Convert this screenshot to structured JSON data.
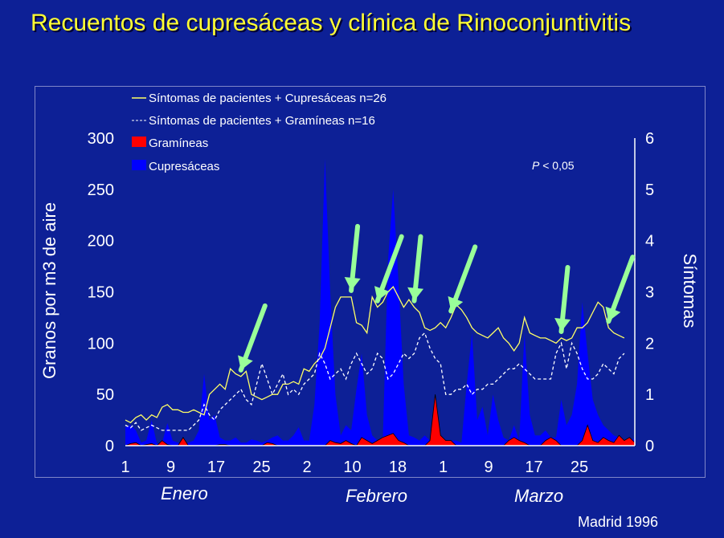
{
  "title": "Recuentos de cupresáceas y clínica de Rinoconjuntivitis",
  "footer": "Madrid 1996",
  "chart_data": {
    "type": "area",
    "ylabel": "Granos por m3 de aire",
    "y2label": "Síntomas",
    "ylim": [
      0,
      300
    ],
    "y2lim": [
      0,
      6
    ],
    "yticks": [
      "0",
      "50",
      "100",
      "150",
      "200",
      "250",
      "300"
    ],
    "y2ticks": [
      "0",
      "1",
      "2",
      "3",
      "4",
      "5",
      "6"
    ],
    "xticks": [
      "1",
      "9",
      "17",
      "25",
      "2",
      "10",
      "18",
      "1",
      "9",
      "17",
      "25"
    ],
    "months": [
      "Enero",
      "Febrero",
      "Marzo"
    ],
    "annotation": "P < 0,05",
    "legend": {
      "placement": "top-left",
      "entries": [
        {
          "label": "Síntomas de pacientes + Cupresáceas n=26",
          "color": "#ffff66",
          "style": "line"
        },
        {
          "label": "Síntomas de pacientes + Gramíneas n=16",
          "color": "#ffffff",
          "style": "dashed"
        },
        {
          "label": "Gramíneas",
          "color": "#ff0000",
          "style": "area"
        },
        {
          "label": "Cupresáceas",
          "color": "#0000ff",
          "style": "area"
        }
      ]
    },
    "series": [
      {
        "name": "Cupresáceas",
        "axis": "left",
        "kind": "area",
        "color": "#0000ff",
        "values": [
          18,
          20,
          15,
          3,
          5,
          25,
          2,
          3,
          22,
          5,
          3,
          1,
          3,
          5,
          15,
          70,
          25,
          30,
          8,
          5,
          5,
          8,
          3,
          3,
          6,
          5,
          3,
          5,
          8,
          10,
          5,
          5,
          10,
          18,
          5,
          5,
          40,
          120,
          280,
          150,
          50,
          10,
          20,
          15,
          55,
          90,
          30,
          10,
          5,
          3,
          180,
          250,
          160,
          60,
          10,
          8,
          5,
          10,
          5,
          5,
          3,
          3,
          5,
          5,
          3,
          60,
          110,
          25,
          38,
          10,
          50,
          25,
          8,
          5,
          20,
          5,
          110,
          30,
          10,
          10,
          15,
          8,
          8,
          45,
          20,
          30,
          60,
          140,
          90,
          45,
          30,
          20,
          15,
          10,
          8,
          5,
          3,
          8
        ]
      },
      {
        "name": "Gramíneas",
        "axis": "left",
        "kind": "area",
        "color": "#ff0000",
        "values": [
          0,
          2,
          3,
          0,
          1,
          2,
          0,
          5,
          1,
          0,
          0,
          8,
          0,
          0,
          0,
          0,
          0,
          0,
          1,
          1,
          0,
          0,
          0,
          0,
          0,
          0,
          0,
          3,
          2,
          0,
          0,
          0,
          0,
          0,
          0,
          0,
          0,
          0,
          0,
          5,
          3,
          2,
          5,
          2,
          0,
          8,
          5,
          2,
          5,
          8,
          10,
          12,
          5,
          3,
          0,
          0,
          0,
          0,
          5,
          50,
          10,
          5,
          5,
          0,
          0,
          0,
          0,
          0,
          0,
          0,
          0,
          0,
          0,
          5,
          8,
          5,
          3,
          0,
          0,
          0,
          5,
          8,
          5,
          0,
          0,
          0,
          0,
          5,
          20,
          5,
          3,
          8,
          5,
          3,
          10,
          5,
          8,
          3
        ]
      },
      {
        "name": "Síntomas de pacientes + Cupresáceas n=26",
        "axis": "right",
        "kind": "line",
        "color": "#ffff66",
        "values": [
          0.5,
          0.45,
          0.55,
          0.6,
          0.5,
          0.6,
          0.55,
          0.75,
          0.8,
          0.7,
          0.7,
          0.65,
          0.65,
          0.7,
          0.65,
          0.6,
          1.0,
          1.1,
          1.2,
          1.1,
          1.5,
          1.4,
          1.35,
          1.45,
          1.0,
          0.95,
          0.9,
          0.95,
          1.0,
          1.0,
          1.2,
          1.2,
          1.25,
          1.2,
          1.5,
          1.45,
          1.6,
          1.7,
          1.9,
          2.3,
          2.7,
          2.9,
          2.9,
          2.9,
          2.4,
          2.35,
          2.2,
          2.9,
          2.7,
          2.8,
          3.0,
          3.1,
          2.9,
          2.7,
          2.85,
          2.7,
          2.6,
          2.3,
          2.25,
          2.3,
          2.4,
          2.3,
          2.5,
          2.75,
          2.65,
          2.5,
          2.3,
          2.2,
          2.15,
          2.1,
          2.2,
          2.3,
          2.1,
          2.0,
          1.85,
          2.0,
          2.5,
          2.2,
          2.15,
          2.1,
          2.1,
          2.05,
          2.0,
          2.1,
          2.05,
          2.1,
          2.3,
          2.3,
          2.4,
          2.6,
          2.8,
          2.7,
          2.3,
          2.2,
          2.15,
          2.1
        ]
      },
      {
        "name": "Síntomas de pacientes + Gramíneas n=16",
        "axis": "right",
        "kind": "line",
        "color": "#ffffff",
        "values": [
          0.4,
          0.35,
          0.45,
          0.3,
          0.35,
          0.4,
          0.35,
          0.3,
          0.3,
          0.3,
          0.3,
          0.3,
          0.3,
          0.4,
          0.5,
          0.8,
          0.6,
          0.5,
          0.7,
          0.8,
          0.9,
          1.0,
          1.1,
          0.9,
          0.8,
          1.2,
          1.6,
          1.3,
          1.0,
          1.2,
          1.4,
          1.0,
          1.1,
          1.0,
          1.2,
          1.3,
          1.4,
          1.8,
          1.6,
          1.3,
          1.4,
          1.5,
          1.3,
          1.6,
          1.8,
          1.6,
          1.4,
          1.5,
          1.8,
          1.7,
          1.3,
          1.4,
          1.6,
          1.8,
          1.7,
          1.8,
          2.1,
          2.2,
          1.9,
          1.7,
          1.6,
          1.0,
          1.0,
          1.1,
          1.1,
          1.2,
          1.0,
          1.1,
          1.1,
          1.2,
          1.2,
          1.3,
          1.4,
          1.5,
          1.5,
          1.6,
          1.5,
          1.4,
          1.3,
          1.3,
          1.3,
          1.3,
          1.8,
          2.0,
          1.5,
          2.0,
          1.8,
          1.5,
          1.3,
          1.3,
          1.4,
          1.6,
          1.5,
          1.4,
          1.7,
          1.8
        ]
      }
    ],
    "arrows_at_index": [
      22,
      43,
      48,
      55,
      62,
      83,
      92
    ]
  }
}
